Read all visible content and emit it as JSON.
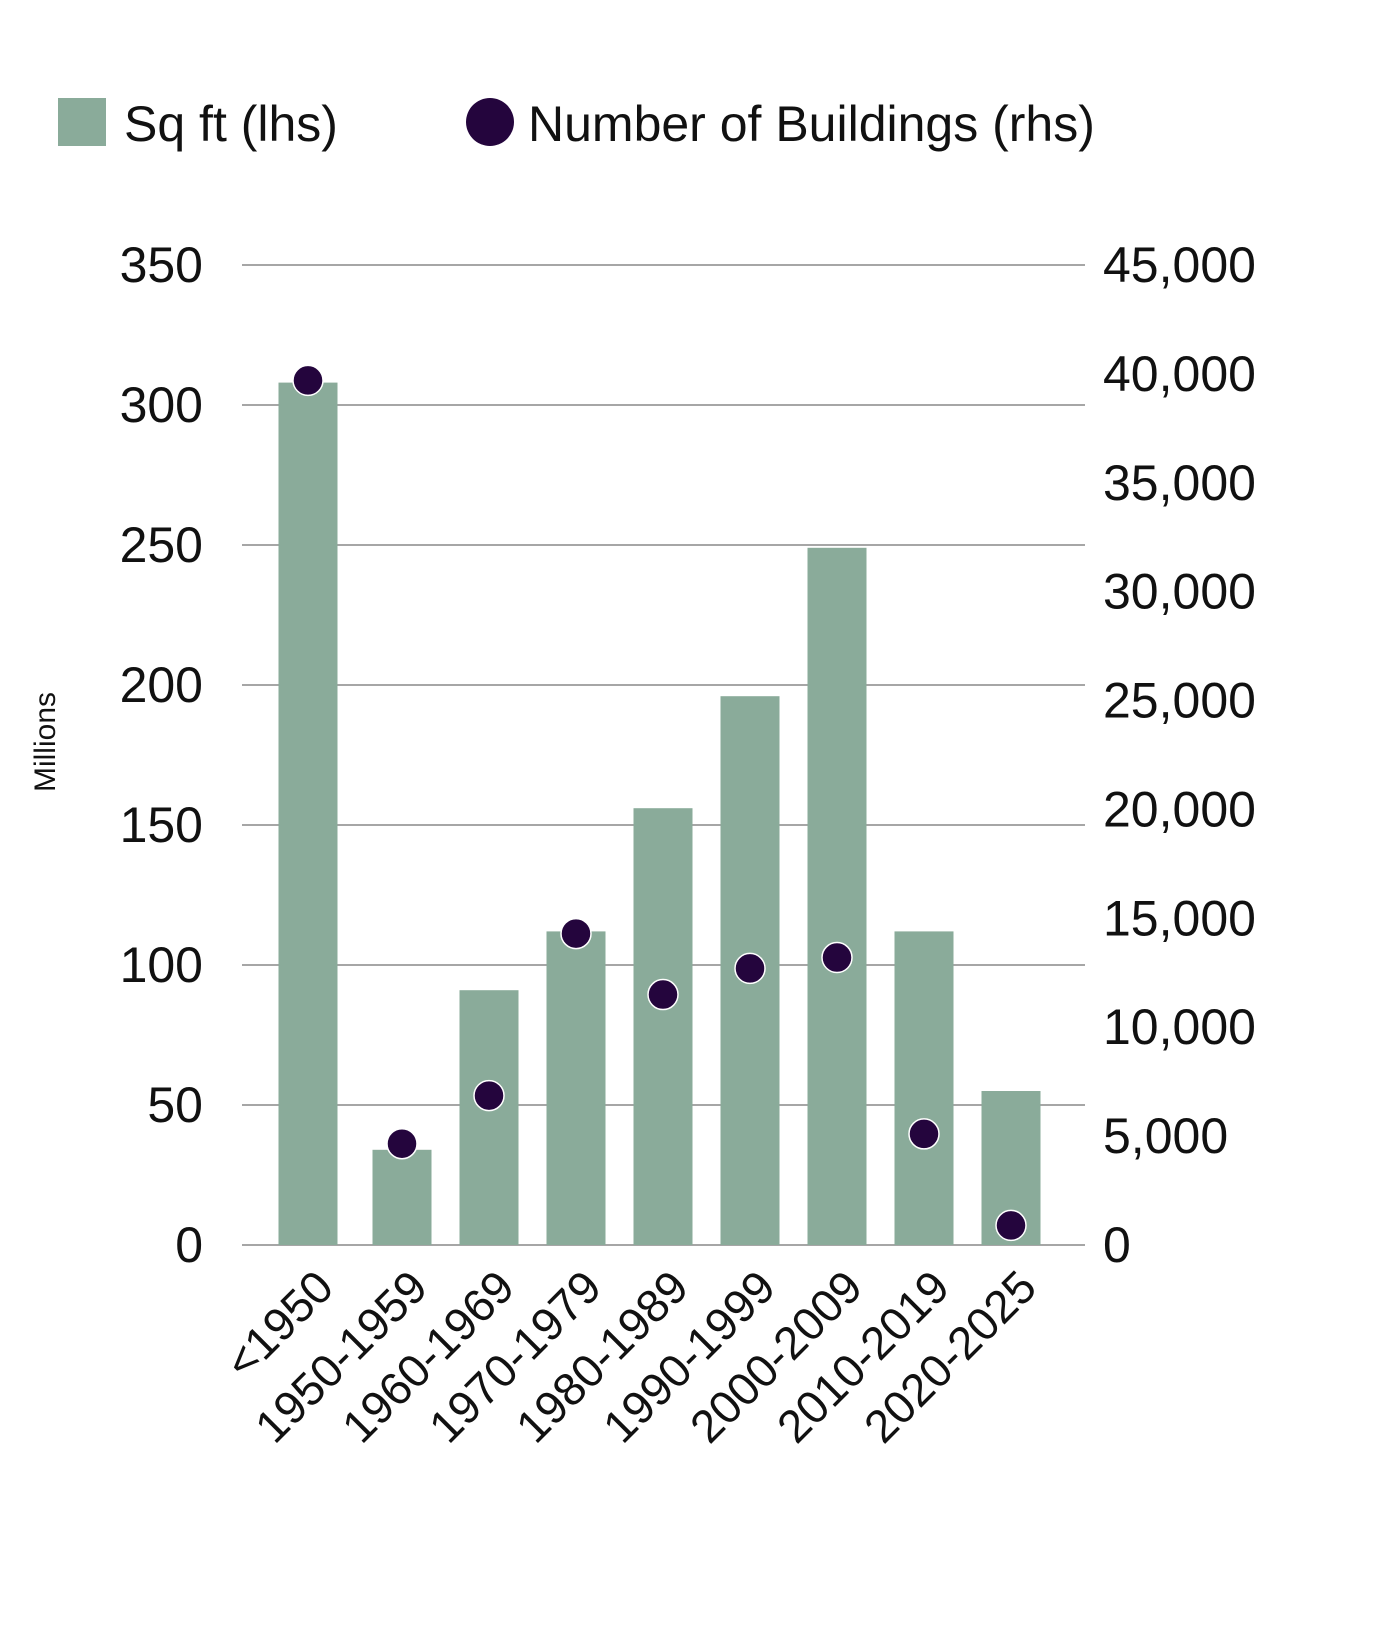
{
  "chart_data": {
    "type": "bar",
    "categories": [
      "<1950",
      "1950-1959",
      "1960-1969",
      "1970-1979",
      "1980-1989",
      "1990-1999",
      "2000-2009",
      "2010-2019",
      "2020-2025"
    ],
    "series": [
      {
        "name": "Sq ft (lhs)",
        "type": "bar",
        "axis": "left",
        "color": "#8aab9a",
        "values": [
          308,
          34,
          91,
          112,
          156,
          196,
          249,
          112,
          55
        ]
      },
      {
        "name": "Number of Buildings (rhs)",
        "type": "scatter",
        "axis": "right",
        "color": "#24053d",
        "values": [
          39700,
          4650,
          6860,
          14300,
          11500,
          12700,
          13200,
          5100,
          900
        ]
      }
    ],
    "left_axis": {
      "label": "Millions",
      "ylim": [
        0,
        350
      ],
      "ticks": [
        "0",
        "50",
        "100",
        "150",
        "200",
        "250",
        "300",
        "350"
      ]
    },
    "right_axis": {
      "label": "",
      "ylim": [
        0,
        45000
      ],
      "ticks": [
        "0",
        "5,000",
        "10,000",
        "15,000",
        "20,000",
        "25,000",
        "30,000",
        "35,000",
        "40,000",
        "45,000"
      ]
    },
    "grid": true,
    "legend": "top"
  }
}
